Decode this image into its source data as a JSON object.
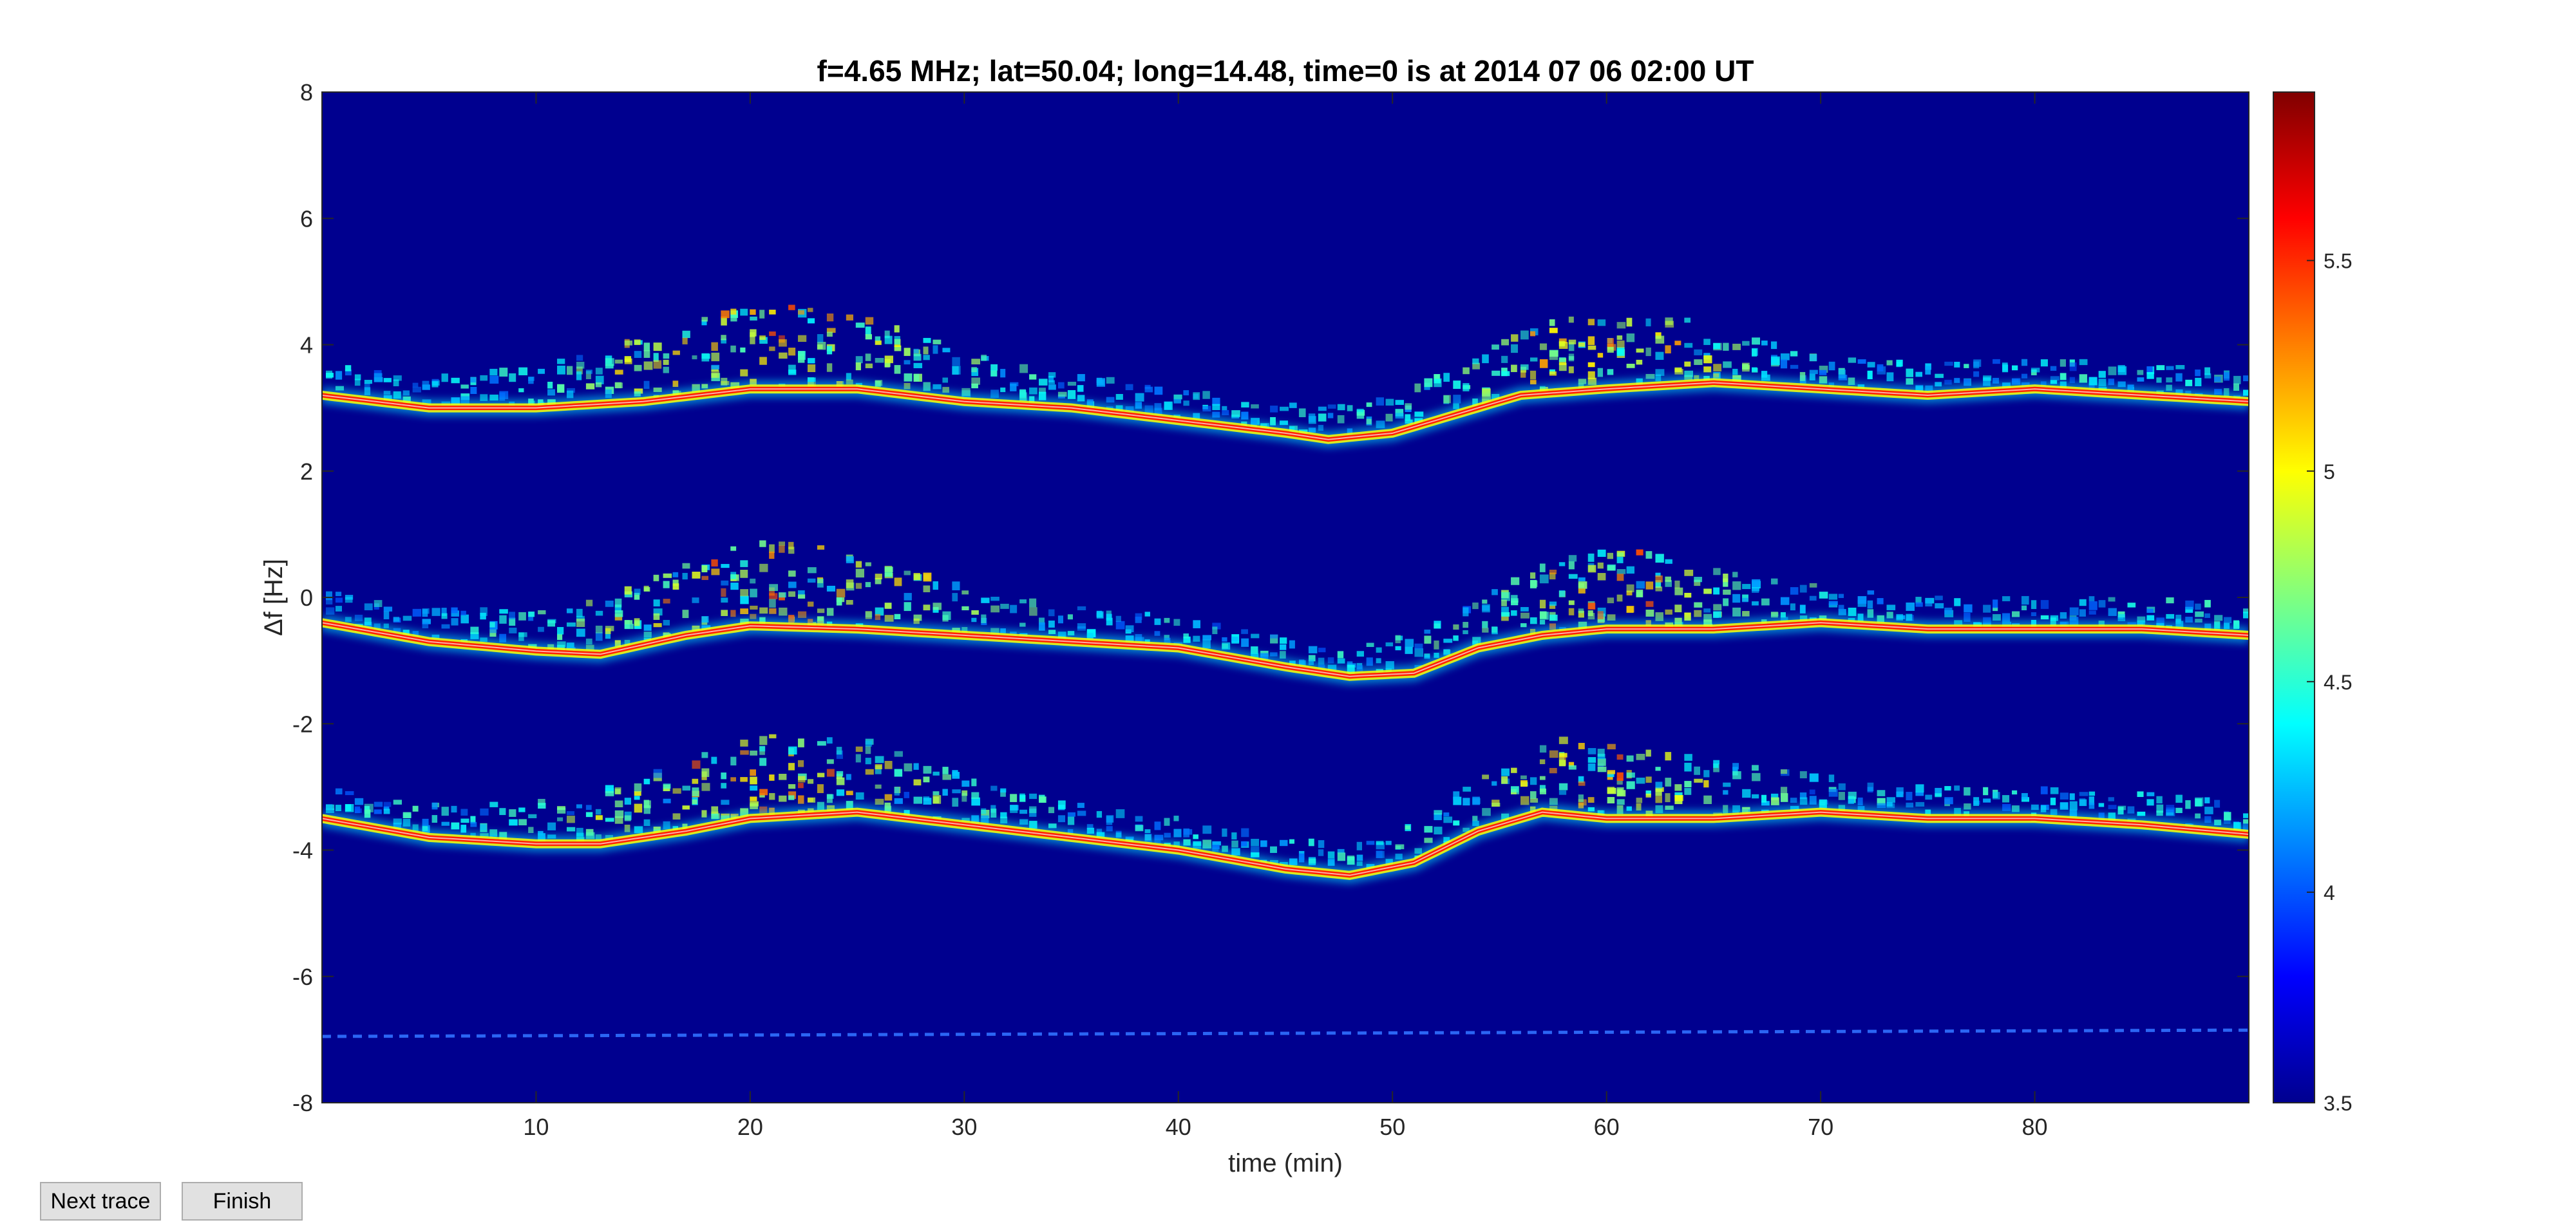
{
  "chart_data": {
    "type": "heatmap",
    "title": "f=4.65 MHz;  lat=50.04; long=14.48, time=0 is at 2014 07 06 02:00 UT",
    "xlabel": "time (min)",
    "ylabel": "Δf [Hz]",
    "xlim": [
      0,
      90
    ],
    "ylim": [
      -8,
      8
    ],
    "xticks": [
      10,
      20,
      30,
      40,
      50,
      60,
      70,
      80
    ],
    "yticks": [
      -8,
      -6,
      -4,
      -2,
      0,
      2,
      4,
      6,
      8
    ],
    "colorbar": {
      "colormap": "jet",
      "clim": [
        3.5,
        5.9
      ],
      "ticks": [
        3.5,
        4,
        4.5,
        5,
        5.5
      ]
    },
    "background_color": "#00008f",
    "grid": false,
    "traces": [
      {
        "label": "upper trace",
        "time": [
          0,
          5,
          10,
          15,
          20,
          25,
          30,
          35,
          40,
          45,
          47,
          50,
          53,
          56,
          60,
          65,
          70,
          75,
          80,
          85,
          90
        ],
        "df": [
          3.2,
          3.0,
          3.0,
          3.1,
          3.3,
          3.3,
          3.1,
          3.0,
          2.8,
          2.6,
          2.5,
          2.6,
          2.9,
          3.2,
          3.3,
          3.4,
          3.3,
          3.2,
          3.3,
          3.2,
          3.1
        ]
      },
      {
        "label": "middle trace",
        "time": [
          0,
          5,
          10,
          13,
          17,
          20,
          25,
          30,
          35,
          40,
          45,
          48,
          51,
          54,
          57,
          60,
          65,
          70,
          75,
          80,
          85,
          90
        ],
        "df": [
          -0.4,
          -0.7,
          -0.85,
          -0.9,
          -0.6,
          -0.45,
          -0.5,
          -0.6,
          -0.7,
          -0.8,
          -1.1,
          -1.25,
          -1.2,
          -0.8,
          -0.6,
          -0.5,
          -0.5,
          -0.4,
          -0.5,
          -0.5,
          -0.5,
          -0.6
        ]
      },
      {
        "label": "lower trace",
        "time": [
          0,
          5,
          10,
          13,
          17,
          20,
          25,
          30,
          35,
          40,
          45,
          48,
          51,
          54,
          57,
          60,
          65,
          70,
          75,
          80,
          85,
          90
        ],
        "df": [
          -3.5,
          -3.8,
          -3.9,
          -3.9,
          -3.7,
          -3.5,
          -3.4,
          -3.6,
          -3.8,
          -4.0,
          -4.3,
          -4.4,
          -4.2,
          -3.7,
          -3.4,
          -3.5,
          -3.5,
          -3.4,
          -3.5,
          -3.5,
          -3.6,
          -3.75
        ]
      },
      {
        "label": "faint line",
        "time": [
          0,
          90
        ],
        "df": [
          -6.95,
          -6.85
        ]
      }
    ]
  },
  "controls": {
    "next_trace": "Next trace",
    "finish": "Finish"
  }
}
